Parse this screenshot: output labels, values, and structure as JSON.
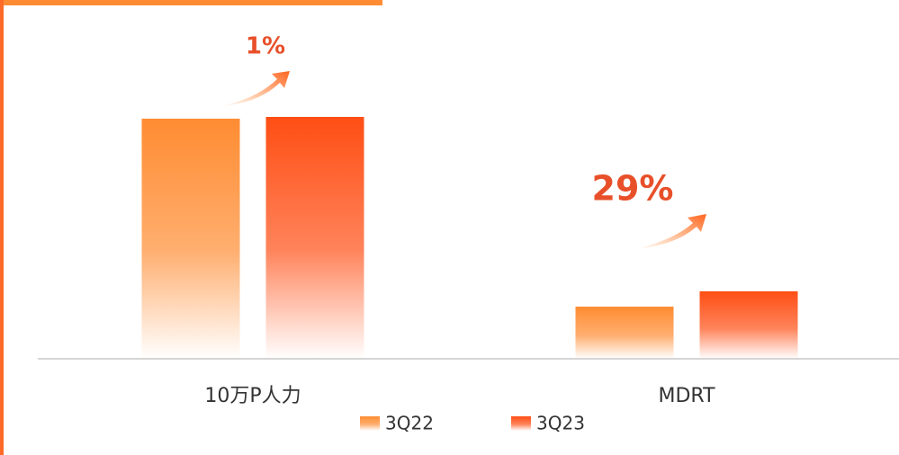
{
  "chart_data": {
    "type": "bar",
    "categories": [
      "10万P人力",
      "MDRT"
    ],
    "series": [
      {
        "name": "3Q22",
        "color": "#ff8c32",
        "values": [
          267,
          58
        ]
      },
      {
        "name": "3Q23",
        "color": "#ff4e14",
        "values": [
          269,
          75
        ]
      }
    ],
    "ylim": [
      0,
      300
    ],
    "annotations": [
      "1%",
      "29%"
    ]
  }
}
